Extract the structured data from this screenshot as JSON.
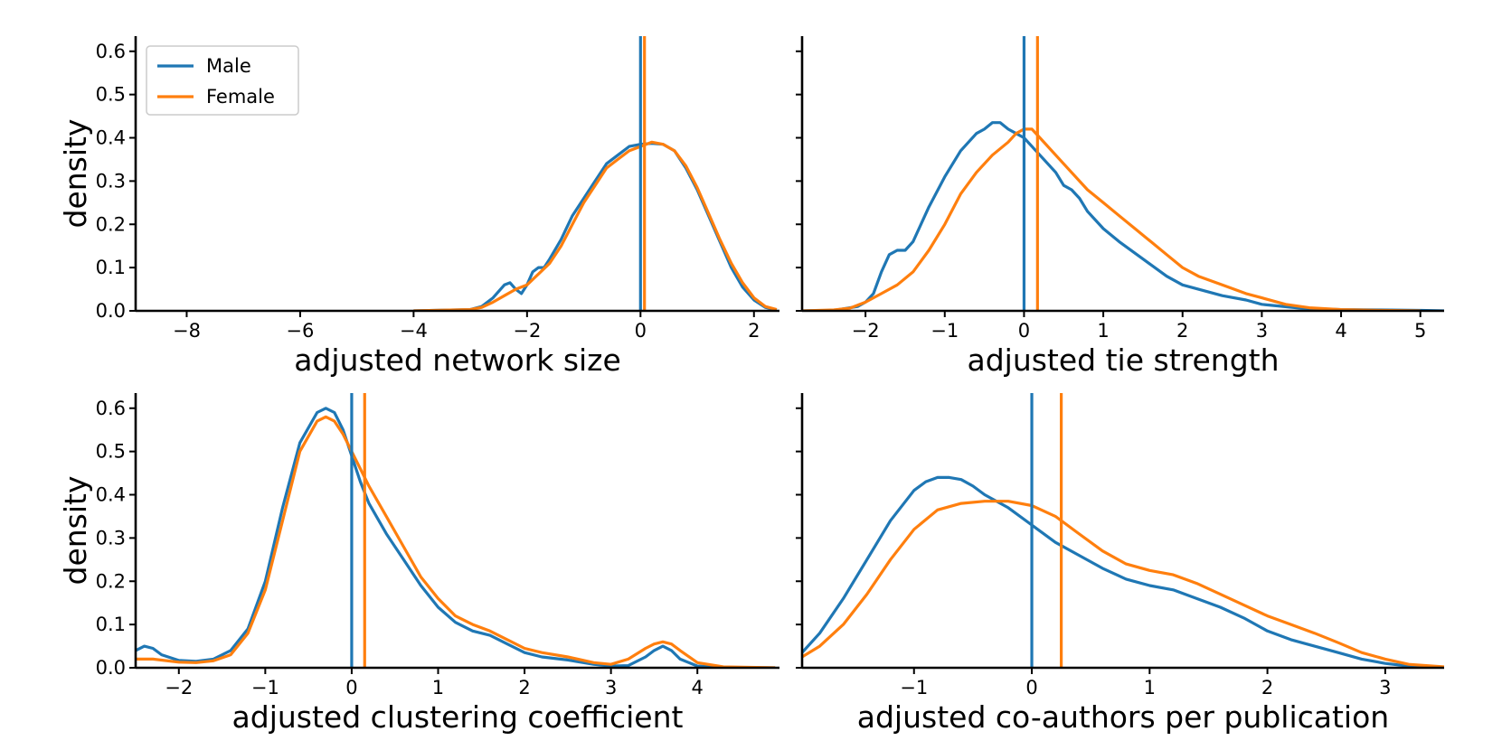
{
  "chart_data": [
    {
      "type": "line",
      "xlabel": "adjusted network size",
      "ylabel": "density",
      "xlim": [
        -8.9,
        2.45
      ],
      "ylim": [
        0,
        0.635
      ],
      "xticks": [
        -8,
        -6,
        -4,
        -2,
        0,
        2
      ],
      "yticks": [
        0.0,
        0.1,
        0.2,
        0.3,
        0.4,
        0.5,
        0.6
      ],
      "show_ytick_labels": true,
      "legend": {
        "placement": "top-left",
        "entries": [
          "Male",
          "Female"
        ]
      },
      "series": [
        {
          "name": "Male",
          "color": "#1f77b4",
          "mean": 0.0,
          "x": [
            -4.0,
            -3.0,
            -2.8,
            -2.6,
            -2.4,
            -2.3,
            -2.2,
            -2.1,
            -2.0,
            -1.9,
            -1.8,
            -1.7,
            -1.6,
            -1.4,
            -1.2,
            -1.0,
            -0.8,
            -0.6,
            -0.4,
            -0.2,
            0.0,
            0.2,
            0.4,
            0.6,
            0.8,
            1.0,
            1.2,
            1.4,
            1.6,
            1.8,
            2.0,
            2.2,
            2.4
          ],
          "y": [
            0.0,
            0.003,
            0.01,
            0.03,
            0.06,
            0.065,
            0.05,
            0.04,
            0.06,
            0.09,
            0.1,
            0.1,
            0.12,
            0.165,
            0.22,
            0.26,
            0.3,
            0.34,
            0.36,
            0.38,
            0.385,
            0.387,
            0.385,
            0.37,
            0.33,
            0.28,
            0.22,
            0.16,
            0.1,
            0.055,
            0.025,
            0.008,
            0.002
          ]
        },
        {
          "name": "Female",
          "color": "#ff7f0e",
          "mean": 0.07,
          "x": [
            -4.0,
            -3.0,
            -2.8,
            -2.6,
            -2.4,
            -2.2,
            -2.0,
            -1.8,
            -1.6,
            -1.4,
            -1.2,
            -1.0,
            -0.8,
            -0.6,
            -0.4,
            -0.2,
            0.0,
            0.2,
            0.4,
            0.6,
            0.8,
            1.0,
            1.2,
            1.4,
            1.6,
            1.8,
            2.0,
            2.2,
            2.4
          ],
          "y": [
            0.0,
            0.003,
            0.008,
            0.02,
            0.035,
            0.05,
            0.06,
            0.085,
            0.11,
            0.15,
            0.2,
            0.25,
            0.29,
            0.33,
            0.35,
            0.37,
            0.38,
            0.39,
            0.385,
            0.37,
            0.335,
            0.285,
            0.225,
            0.165,
            0.11,
            0.065,
            0.03,
            0.01,
            0.003
          ]
        }
      ]
    },
    {
      "type": "line",
      "xlabel": "adjusted tie strength",
      "ylabel": "",
      "xlim": [
        -2.8,
        5.3
      ],
      "ylim": [
        0,
        0.635
      ],
      "xticks": [
        -2,
        -1,
        0,
        1,
        2,
        3,
        4,
        5
      ],
      "yticks": [
        0.0,
        0.1,
        0.2,
        0.3,
        0.4,
        0.5,
        0.6
      ],
      "show_ytick_labels": false,
      "series": [
        {
          "name": "Male",
          "color": "#1f77b4",
          "mean": 0.0,
          "x": [
            -2.8,
            -2.4,
            -2.1,
            -2.0,
            -1.9,
            -1.8,
            -1.7,
            -1.6,
            -1.5,
            -1.4,
            -1.2,
            -1.0,
            -0.8,
            -0.6,
            -0.5,
            -0.4,
            -0.3,
            -0.2,
            -0.1,
            0.0,
            0.1,
            0.2,
            0.4,
            0.5,
            0.6,
            0.7,
            0.8,
            1.0,
            1.2,
            1.5,
            1.8,
            2.0,
            2.2,
            2.5,
            2.8,
            3.0,
            3.5,
            4.0,
            4.5,
            5.0,
            5.3
          ],
          "y": [
            0.0,
            0.001,
            0.01,
            0.02,
            0.04,
            0.09,
            0.13,
            0.14,
            0.14,
            0.16,
            0.24,
            0.31,
            0.37,
            0.41,
            0.42,
            0.435,
            0.435,
            0.42,
            0.41,
            0.4,
            0.38,
            0.36,
            0.32,
            0.29,
            0.28,
            0.26,
            0.23,
            0.19,
            0.16,
            0.12,
            0.08,
            0.06,
            0.05,
            0.035,
            0.025,
            0.015,
            0.006,
            0.003,
            0.002,
            0.001,
            0.0
          ]
        },
        {
          "name": "Female",
          "color": "#ff7f0e",
          "mean": 0.17,
          "x": [
            -2.8,
            -2.4,
            -2.2,
            -2.0,
            -1.8,
            -1.6,
            -1.4,
            -1.2,
            -1.0,
            -0.8,
            -0.6,
            -0.4,
            -0.2,
            -0.1,
            0.0,
            0.1,
            0.2,
            0.4,
            0.6,
            0.8,
            1.0,
            1.2,
            1.4,
            1.6,
            1.8,
            2.0,
            2.2,
            2.5,
            2.8,
            3.0,
            3.3,
            3.6,
            4.0,
            4.5,
            5.0
          ],
          "y": [
            0.0,
            0.002,
            0.006,
            0.02,
            0.04,
            0.06,
            0.09,
            0.14,
            0.2,
            0.27,
            0.32,
            0.36,
            0.39,
            0.41,
            0.42,
            0.42,
            0.4,
            0.36,
            0.32,
            0.28,
            0.25,
            0.22,
            0.19,
            0.16,
            0.13,
            0.1,
            0.08,
            0.06,
            0.04,
            0.03,
            0.015,
            0.007,
            0.003,
            0.001,
            0.0
          ]
        }
      ]
    },
    {
      "type": "line",
      "xlabel": "adjusted clustering coefficient",
      "ylabel": "density",
      "xlim": [
        -2.5,
        4.95
      ],
      "ylim": [
        0,
        0.635
      ],
      "xticks": [
        -2,
        -1,
        0,
        1,
        2,
        3,
        4
      ],
      "yticks": [
        0.0,
        0.1,
        0.2,
        0.3,
        0.4,
        0.5,
        0.6
      ],
      "show_ytick_labels": true,
      "series": [
        {
          "name": "Male",
          "color": "#1f77b4",
          "mean": 0.0,
          "x": [
            -2.5,
            -2.4,
            -2.3,
            -2.2,
            -2.0,
            -1.8,
            -1.6,
            -1.4,
            -1.2,
            -1.0,
            -0.8,
            -0.6,
            -0.4,
            -0.3,
            -0.2,
            -0.1,
            0.0,
            0.1,
            0.2,
            0.4,
            0.6,
            0.8,
            1.0,
            1.2,
            1.4,
            1.6,
            1.8,
            2.0,
            2.2,
            2.5,
            2.8,
            3.0,
            3.2,
            3.4,
            3.5,
            3.6,
            3.7,
            3.8,
            4.0,
            4.3,
            4.9
          ],
          "y": [
            0.04,
            0.05,
            0.045,
            0.03,
            0.017,
            0.015,
            0.02,
            0.04,
            0.09,
            0.2,
            0.37,
            0.52,
            0.59,
            0.6,
            0.59,
            0.55,
            0.49,
            0.43,
            0.38,
            0.31,
            0.25,
            0.19,
            0.14,
            0.105,
            0.085,
            0.075,
            0.055,
            0.035,
            0.025,
            0.018,
            0.008,
            0.004,
            0.005,
            0.025,
            0.04,
            0.05,
            0.04,
            0.02,
            0.004,
            0.001,
            0.0
          ]
        },
        {
          "name": "Female",
          "color": "#ff7f0e",
          "mean": 0.15,
          "x": [
            -2.5,
            -2.3,
            -2.0,
            -1.8,
            -1.6,
            -1.4,
            -1.2,
            -1.0,
            -0.8,
            -0.6,
            -0.4,
            -0.3,
            -0.2,
            -0.1,
            0.0,
            0.1,
            0.2,
            0.4,
            0.6,
            0.8,
            1.0,
            1.2,
            1.4,
            1.6,
            1.8,
            2.0,
            2.2,
            2.5,
            2.8,
            3.0,
            3.2,
            3.4,
            3.5,
            3.6,
            3.7,
            3.8,
            4.0,
            4.3,
            4.9
          ],
          "y": [
            0.02,
            0.02,
            0.013,
            0.012,
            0.016,
            0.03,
            0.08,
            0.18,
            0.34,
            0.5,
            0.57,
            0.58,
            0.57,
            0.54,
            0.5,
            0.46,
            0.42,
            0.35,
            0.28,
            0.21,
            0.16,
            0.12,
            0.1,
            0.085,
            0.065,
            0.045,
            0.035,
            0.025,
            0.012,
            0.008,
            0.02,
            0.045,
            0.055,
            0.06,
            0.055,
            0.04,
            0.012,
            0.002,
            0.0
          ]
        }
      ]
    },
    {
      "type": "line",
      "xlabel": "adjusted co-authors per publication",
      "ylabel": "",
      "xlim": [
        -1.95,
        3.5
      ],
      "ylim": [
        0,
        0.635
      ],
      "xticks": [
        -1,
        0,
        1,
        2,
        3
      ],
      "yticks": [
        0.0,
        0.1,
        0.2,
        0.3,
        0.4,
        0.5,
        0.6
      ],
      "show_ytick_labels": false,
      "series": [
        {
          "name": "Male",
          "color": "#1f77b4",
          "mean": 0.0,
          "x": [
            -1.95,
            -1.8,
            -1.6,
            -1.4,
            -1.2,
            -1.0,
            -0.9,
            -0.8,
            -0.7,
            -0.6,
            -0.5,
            -0.4,
            -0.2,
            0.0,
            0.2,
            0.4,
            0.6,
            0.8,
            1.0,
            1.2,
            1.4,
            1.6,
            1.8,
            2.0,
            2.2,
            2.4,
            2.6,
            2.8,
            3.0,
            3.2,
            3.5
          ],
          "y": [
            0.035,
            0.08,
            0.16,
            0.25,
            0.34,
            0.41,
            0.43,
            0.44,
            0.44,
            0.435,
            0.42,
            0.4,
            0.37,
            0.33,
            0.29,
            0.26,
            0.23,
            0.205,
            0.19,
            0.18,
            0.16,
            0.14,
            0.115,
            0.085,
            0.065,
            0.05,
            0.035,
            0.02,
            0.01,
            0.004,
            0.001
          ]
        },
        {
          "name": "Female",
          "color": "#ff7f0e",
          "mean": 0.25,
          "x": [
            -1.95,
            -1.8,
            -1.6,
            -1.4,
            -1.2,
            -1.0,
            -0.8,
            -0.6,
            -0.4,
            -0.2,
            0.0,
            0.2,
            0.4,
            0.6,
            0.8,
            1.0,
            1.2,
            1.4,
            1.6,
            1.8,
            2.0,
            2.2,
            2.4,
            2.6,
            2.8,
            3.0,
            3.2,
            3.5
          ],
          "y": [
            0.025,
            0.05,
            0.1,
            0.17,
            0.25,
            0.32,
            0.365,
            0.38,
            0.385,
            0.385,
            0.375,
            0.35,
            0.31,
            0.27,
            0.24,
            0.225,
            0.215,
            0.195,
            0.17,
            0.145,
            0.12,
            0.1,
            0.08,
            0.058,
            0.035,
            0.02,
            0.008,
            0.002
          ]
        }
      ]
    }
  ]
}
